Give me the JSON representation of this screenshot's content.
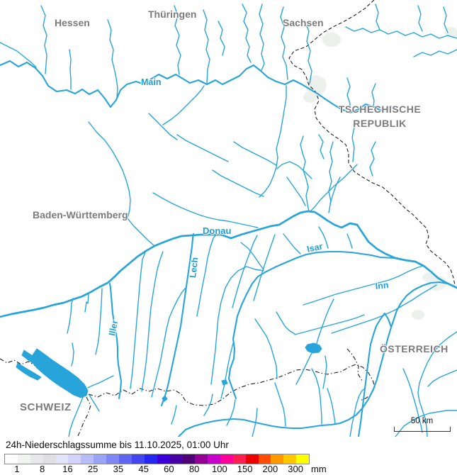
{
  "map": {
    "regions": {
      "hessen": "Hessen",
      "thueringen": "Thüringen",
      "sachsen": "Sachsen",
      "czech_line1": "TSCHECHISCHE",
      "czech_line2": "REPUBLIK",
      "baden_wuerttemberg": "Baden-Württemberg",
      "oesterreich": "ÖSTERREICH",
      "schweiz": "SCHWEIZ"
    },
    "rivers": {
      "main": "Main",
      "donau": "Donau",
      "lech": "Lech",
      "isar": "Isar",
      "inn": "Inn",
      "iller": "Iller"
    },
    "scale_bar_label": "50 km",
    "colors": {
      "river": "#27a5da",
      "lake": "#27a5da",
      "border": "#1f1f1f",
      "region_label": "#7b7b7b",
      "river_label": "#1b9fd6",
      "light_precip_area": "#edf1ed"
    }
  },
  "legend": {
    "title": "24h-Niederschlagssumme bis 11.10.2025, 01:00 Uhr",
    "unit": "mm",
    "ticks": [
      "1",
      "8",
      "16",
      "25",
      "35",
      "45",
      "60",
      "80",
      "100",
      "150",
      "200",
      "300"
    ],
    "segment_colors": [
      "#ffffff",
      "#f1f4f1",
      "#e9e9eb",
      "#e0e0e3",
      "#e3e3fb",
      "#d1d3fb",
      "#b7bdf9",
      "#9ba3f7",
      "#7f87f7",
      "#6066f3",
      "#4345f0",
      "#2526f0",
      "#3c00da",
      "#4a00a8",
      "#500078",
      "#940096",
      "#c800cc",
      "#ff0098",
      "#fb2050",
      "#ee0000",
      "#ff4c00",
      "#ff9700",
      "#fdc800",
      "#ffff00"
    ]
  }
}
